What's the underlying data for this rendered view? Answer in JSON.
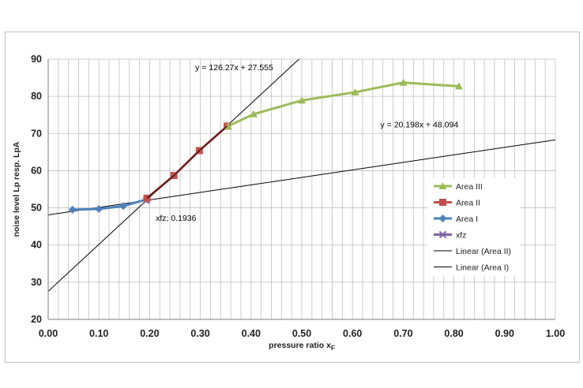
{
  "chart_data": {
    "type": "line",
    "title": "",
    "xlabel": "pressure ratio x",
    "xlabel_sub": "F",
    "ylabel": "noise level Lp resp. LpA",
    "xlim": [
      0,
      1
    ],
    "ylim": [
      20,
      90
    ],
    "x_ticks": [
      "0.00",
      "0.10",
      "0.20",
      "0.30",
      "0.40",
      "0.50",
      "0.60",
      "0.70",
      "0.80",
      "0.90",
      "1.00"
    ],
    "y_ticks": [
      "20",
      "30",
      "40",
      "50",
      "60",
      "70",
      "80",
      "90"
    ],
    "grid": true,
    "legend_position": "right",
    "series": [
      {
        "name": "Area III",
        "color": "#9bbb59",
        "marker": "triangle",
        "x": [
          0.355,
          0.405,
          0.5,
          0.605,
          0.7,
          0.81
        ],
        "y": [
          72.0,
          75.2,
          78.9,
          81.1,
          83.7,
          82.7
        ]
      },
      {
        "name": "Area II",
        "color": "#c0504d",
        "marker": "square",
        "x": [
          0.195,
          0.248,
          0.298,
          0.353
        ],
        "y": [
          52.6,
          58.7,
          65.4,
          72.0
        ]
      },
      {
        "name": "Area I",
        "color": "#4f81bd",
        "marker": "diamond",
        "x": [
          0.048,
          0.1,
          0.148,
          0.195
        ],
        "y": [
          49.5,
          49.7,
          50.5,
          52.3
        ]
      },
      {
        "name": "xfz",
        "color": "#8064a2",
        "marker": "x",
        "x": [
          0.1936
        ],
        "y": [
          52.0
        ]
      },
      {
        "name": "Linear (Area II)",
        "color": "#000000",
        "marker": "none",
        "slope": 126.27,
        "intercept": 27.555
      },
      {
        "name": "Linear (Area I)",
        "color": "#000000",
        "marker": "none",
        "slope": 20.198,
        "intercept": 48.094
      }
    ],
    "annotations": [
      {
        "id": "eq2",
        "text": "y = 126.27x + 27.555",
        "x": 0.29,
        "y": 87.0
      },
      {
        "id": "eq1",
        "text": "y = 20.198x + 48.094",
        "x": 0.655,
        "y": 71.6
      },
      {
        "id": "xfz",
        "text": "xfz; 0.1936",
        "x": 0.212,
        "y": 46.5
      }
    ]
  }
}
